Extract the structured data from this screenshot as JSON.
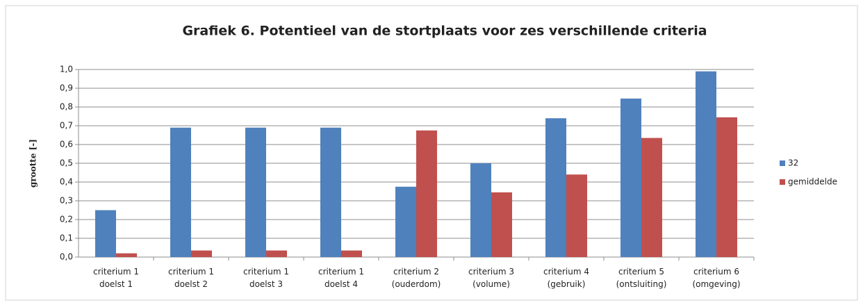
{
  "chart_data": {
    "type": "bar",
    "title": "Grafiek 6. Potentieel van de stortplaats voor zes verschillende criteria",
    "y_label": "grootte [-]",
    "categories": [
      "criterium 1\ndoelst 1",
      "criterium 1\ndoelst 2",
      "criterium 1\ndoelst 3",
      "criterium 1\ndoelst 4",
      "criterium 2\n(ouderdom)",
      "criterium 3\n(volume)",
      "criterium 4\n(gebruik)",
      "criterium 5\n(ontsluiting)",
      "criterium 6\n(omgeving)"
    ],
    "series": [
      {
        "name": "32",
        "color": "#4f81bd",
        "values": [
          0.25,
          0.69,
          0.69,
          0.69,
          0.375,
          0.5,
          0.74,
          0.845,
          0.99
        ]
      },
      {
        "name": "gemiddelde",
        "color": "#c0504d",
        "values": [
          0.02,
          0.035,
          0.035,
          0.035,
          0.675,
          0.345,
          0.44,
          0.635,
          0.745
        ]
      }
    ],
    "ylim": [
      0,
      1
    ],
    "yticks": [
      {
        "value": 0,
        "label": "0,0"
      },
      {
        "value": 0.1,
        "label": "0,1"
      },
      {
        "value": 0.2,
        "label": "0,2"
      },
      {
        "value": 0.3,
        "label": "0,3"
      },
      {
        "value": 0.4,
        "label": "0,4"
      },
      {
        "value": 0.5,
        "label": "0,5"
      },
      {
        "value": 0.6,
        "label": "0,6"
      },
      {
        "value": 0.7,
        "label": "0,7"
      },
      {
        "value": 0.8,
        "label": "0,8"
      },
      {
        "value": 0.9,
        "label": "0,9"
      },
      {
        "value": 1,
        "label": "1,0"
      }
    ],
    "grid": true,
    "legend": "right"
  }
}
